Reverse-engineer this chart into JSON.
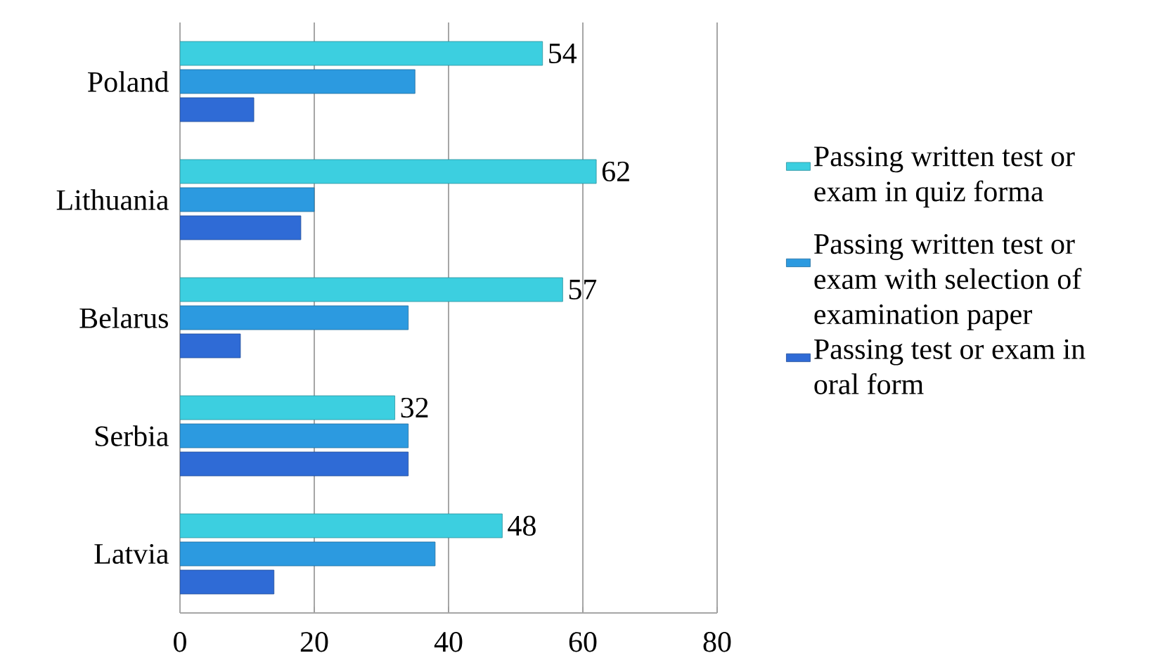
{
  "chart_data": {
    "type": "bar",
    "orientation": "horizontal",
    "categories": [
      "Poland",
      "Lithuania",
      "Belarus",
      "Serbia",
      "Latvia"
    ],
    "series": [
      {
        "name": "Passing written test or exam in quiz forma",
        "color": "#3ccfe0",
        "values": [
          54,
          62,
          57,
          32,
          48
        ],
        "value_labels": [
          "54",
          "62",
          "57",
          "32",
          "48"
        ]
      },
      {
        "name": "Passing written test or exam with selection of examination paper",
        "color": "#2c9ae0",
        "values": [
          35,
          20,
          34,
          34,
          38
        ]
      },
      {
        "name": "Passing test or exam in oral form",
        "color": "#2f6bd6",
        "values": [
          11,
          18,
          9,
          34,
          14
        ]
      }
    ],
    "xlim": [
      0,
      80
    ],
    "xticks": [
      0,
      20,
      40,
      60,
      80
    ],
    "grid": "x",
    "legend": "right"
  }
}
